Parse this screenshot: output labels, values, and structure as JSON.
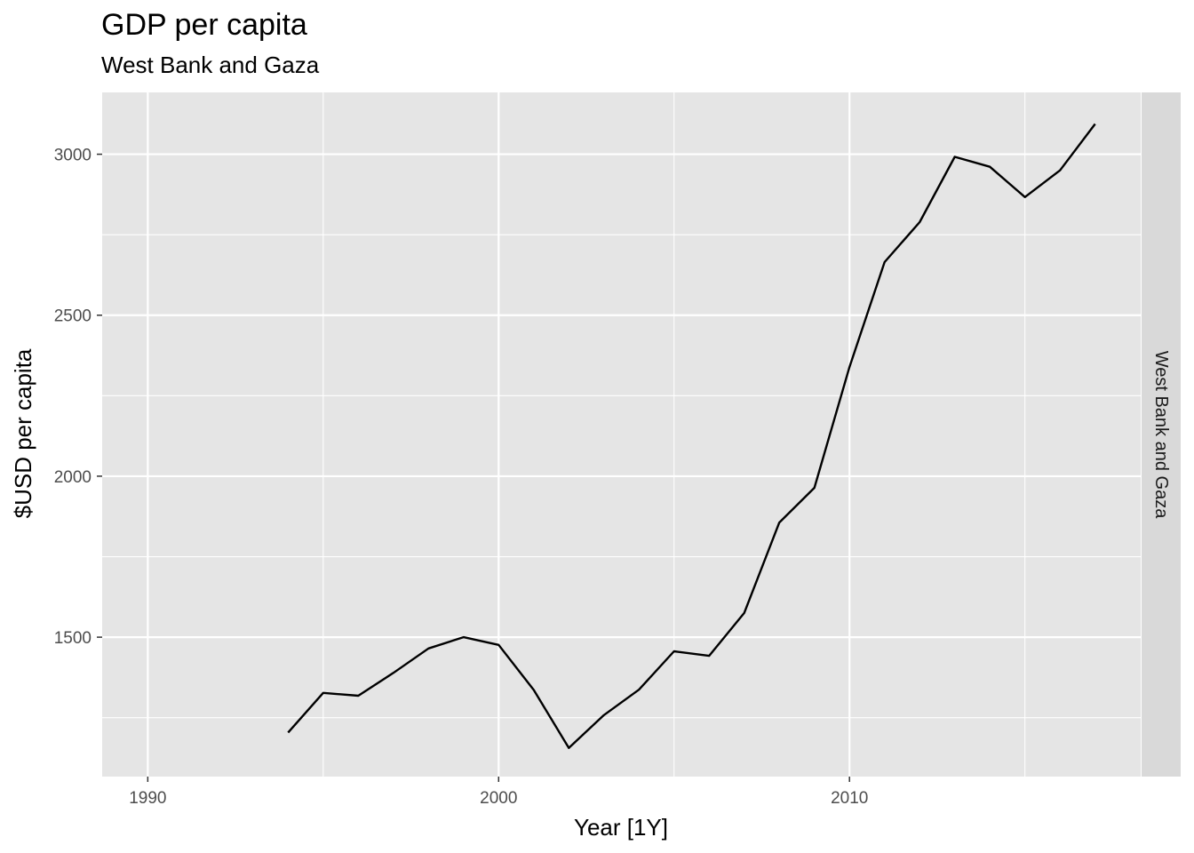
{
  "chart_data": {
    "type": "line",
    "title": "GDP per capita",
    "subtitle": "West Bank and Gaza",
    "xlabel": "Year [1Y]",
    "ylabel": "$USD per capita",
    "facet_label": "West Bank and Gaza",
    "xlim": [
      1988.7,
      2018.3
    ],
    "ylim": [
      1067,
      3192
    ],
    "x_ticks": [
      1990,
      2000,
      2010
    ],
    "x_tick_labels": [
      "1990",
      "2000",
      "2010"
    ],
    "x_minor_ticks": [
      1995,
      2005,
      2015
    ],
    "y_ticks": [
      1500,
      2000,
      2500,
      3000
    ],
    "y_tick_labels": [
      "1500",
      "2000",
      "2500",
      "3000"
    ],
    "y_minor_ticks": [
      1250,
      1750,
      2250,
      2750
    ],
    "grid": true,
    "series": [
      {
        "x": [
          1994,
          1995,
          1996,
          1997,
          1998,
          1999,
          2000,
          2001,
          2002,
          2003,
          2004,
          2005,
          2006,
          2007,
          2008,
          2009,
          2010,
          2011,
          2012,
          2013,
          2014,
          2015,
          2016,
          2017
        ],
        "values": [
          1204,
          1327,
          1318,
          1389,
          1465,
          1500,
          1476,
          1336,
          1156,
          1258,
          1337,
          1456,
          1442,
          1575,
          1856,
          1964,
          2339,
          2665,
          2789,
          2992,
          2961,
          2867,
          2950,
          3094
        ]
      }
    ]
  },
  "colors": {
    "panel_background": "#e5e5e5",
    "grid_line": "#ffffff",
    "strip_background": "#d9d9d9",
    "line": "#000000"
  }
}
